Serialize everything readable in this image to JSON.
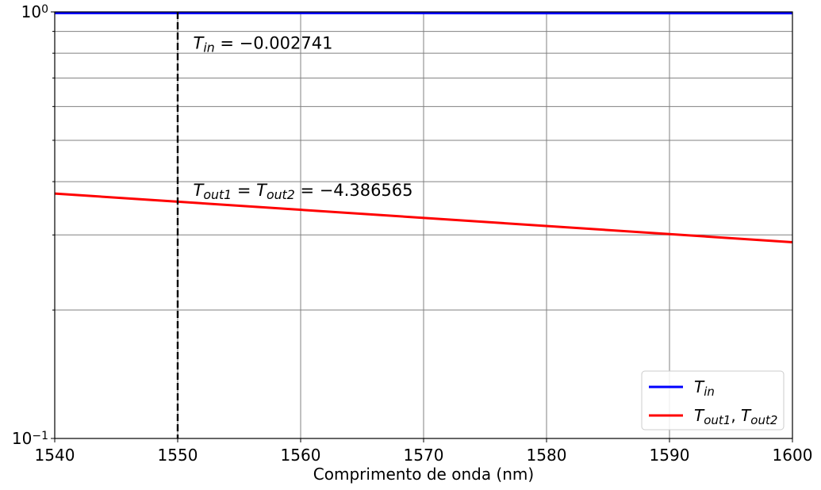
{
  "chart_data": {
    "type": "line",
    "title": "",
    "xlabel": "Comprimento de onda (nm)",
    "ylabel": "",
    "xlim": [
      1540,
      1600
    ],
    "ylim": [
      0.1,
      1.0
    ],
    "yscale": "log",
    "grid": true,
    "legend_position": "bottom-right",
    "x_ticks": [
      "1540",
      "1550",
      "1560",
      "1570",
      "1580",
      "1590",
      "1600"
    ],
    "y_ticks": [
      {
        "base": "10",
        "exp": "0",
        "value": 1.0
      },
      {
        "base": "10",
        "exp": "−1",
        "value": 0.1
      }
    ],
    "series": [
      {
        "legend_main": "T",
        "legend_sub": "in",
        "color": "#0000ff",
        "x": [
          1540,
          1600
        ],
        "y": [
          0.9937,
          0.9931
        ]
      },
      {
        "legend_main": "T",
        "legend_sub": "out1",
        "legend_main2": "T",
        "legend_sub2": "out2",
        "color": "#ff0000",
        "x": [
          1540,
          1600
        ],
        "y": [
          0.375,
          0.2885
        ]
      }
    ],
    "vline": {
      "x": 1550,
      "color": "#000000",
      "style": "dashed"
    },
    "annotations": [
      {
        "parts": [
          [
            "T",
            ""
          ],
          [
            "in",
            "sub"
          ],
          [
            " = −0.002741",
            ""
          ]
        ],
        "x": 1551,
        "y": 0.84
      },
      {
        "parts": [
          [
            "T",
            ""
          ],
          [
            "out1",
            "sub"
          ],
          [
            " = T",
            ""
          ],
          [
            "out2",
            "sub"
          ],
          [
            " = −4.386565",
            ""
          ]
        ],
        "x": 1551,
        "y": 0.38
      }
    ]
  }
}
